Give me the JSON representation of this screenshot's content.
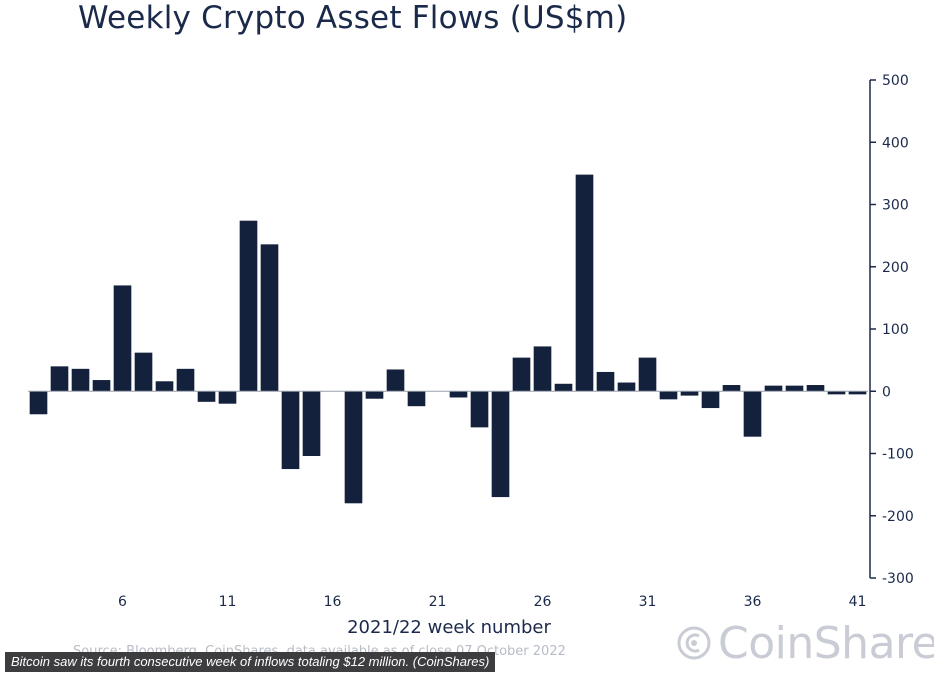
{
  "chart_data": {
    "type": "bar",
    "title": "Weekly Crypto Asset Flows (US$m)",
    "xlabel": "2021/22 week number",
    "ylabel": "",
    "ylim": [
      -300,
      500
    ],
    "yticks": [
      500,
      400,
      300,
      200,
      100,
      0,
      -100,
      -200,
      -300
    ],
    "xtick_labels": [
      "6",
      "11",
      "16",
      "21",
      "26",
      "31",
      "36",
      "41"
    ],
    "x": [
      2,
      3,
      4,
      5,
      6,
      7,
      8,
      9,
      10,
      11,
      12,
      13,
      14,
      15,
      16,
      17,
      18,
      19,
      20,
      21,
      22,
      23,
      24,
      25,
      26,
      27,
      28,
      29,
      30,
      31,
      32,
      33,
      34,
      35,
      36,
      37,
      38,
      39,
      40,
      41
    ],
    "values": [
      -37,
      40,
      36,
      18,
      170,
      62,
      16,
      36,
      -17,
      -20,
      274,
      236,
      -125,
      -104,
      0,
      -180,
      -12,
      35,
      -24,
      0,
      -10,
      -58,
      -170,
      54,
      72,
      12,
      348,
      31,
      14,
      54,
      -13,
      -7,
      -27,
      10,
      -73,
      9,
      9,
      10,
      -5,
      -5
    ],
    "grid": false,
    "legend": "none",
    "bar_color": "#14213d",
    "axis_side": "right"
  },
  "source_note": "Source: Bloomberg, CoinShares, data available as of close 07 October 2022",
  "logo": {
    "text": "CoinShares"
  },
  "caption": "Bitcoin saw its fourth consecutive week of inflows totaling $12 million. (CoinShares)"
}
